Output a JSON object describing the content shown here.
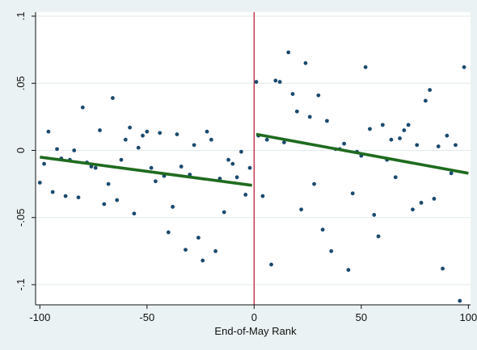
{
  "chart_data": {
    "type": "scatter",
    "title": "",
    "xlabel": "End-of-May Rank",
    "ylabel": "",
    "xlim": [
      -102,
      101
    ],
    "ylim": [
      -0.115,
      0.103
    ],
    "x_ticks": [
      -100,
      -50,
      0,
      50,
      100
    ],
    "x_tick_labels": [
      "-100",
      "-50",
      "0",
      "50",
      "100"
    ],
    "y_ticks": [
      -0.1,
      -0.05,
      0,
      0.05,
      0.1
    ],
    "y_tick_labels": [
      "-.1",
      "-.05",
      "0",
      ".05",
      ".1"
    ],
    "grid": "horizontal",
    "cutoff_x": 0,
    "colors": {
      "background": "#eaf2f3",
      "plot_background": "#ffffff",
      "points": "#1a4a6e",
      "fit_line": "#1f6b1f",
      "cutoff_line": "#c0304a"
    },
    "points": [
      [
        -100,
        -0.024
      ],
      [
        -98,
        -0.01
      ],
      [
        -96,
        0.014
      ],
      [
        -94,
        -0.031
      ],
      [
        -92,
        0.001
      ],
      [
        -90,
        -0.006
      ],
      [
        -88,
        -0.034
      ],
      [
        -86,
        -0.007
      ],
      [
        -84,
        0.0
      ],
      [
        -82,
        -0.035
      ],
      [
        -80,
        0.032
      ],
      [
        -78,
        -0.009
      ],
      [
        -76,
        -0.012
      ],
      [
        -74,
        -0.013
      ],
      [
        -72,
        0.015
      ],
      [
        -70,
        -0.04
      ],
      [
        -68,
        -0.025
      ],
      [
        -66,
        0.039
      ],
      [
        -64,
        -0.037
      ],
      [
        -62,
        -0.007
      ],
      [
        -60,
        0.008
      ],
      [
        -58,
        0.017
      ],
      [
        -56,
        -0.047
      ],
      [
        -54,
        0.002
      ],
      [
        -52,
        0.011
      ],
      [
        -50,
        0.014
      ],
      [
        -48,
        -0.013
      ],
      [
        -46,
        -0.023
      ],
      [
        -44,
        0.013
      ],
      [
        -42,
        -0.019
      ],
      [
        -40,
        -0.061
      ],
      [
        -38,
        -0.042
      ],
      [
        -36,
        0.012
      ],
      [
        -34,
        -0.012
      ],
      [
        -32,
        -0.074
      ],
      [
        -30,
        -0.018
      ],
      [
        -28,
        0.004
      ],
      [
        -26,
        -0.065
      ],
      [
        -24,
        -0.082
      ],
      [
        -22,
        0.014
      ],
      [
        -20,
        0.008
      ],
      [
        -18,
        -0.075
      ],
      [
        -16,
        -0.021
      ],
      [
        -14,
        -0.046
      ],
      [
        -12,
        -0.007
      ],
      [
        -10,
        -0.01
      ],
      [
        -8,
        -0.02
      ],
      [
        -6,
        -0.001
      ],
      [
        -4,
        -0.033
      ],
      [
        -2,
        -0.013
      ],
      [
        1,
        0.051
      ],
      [
        2,
        0.011
      ],
      [
        4,
        -0.034
      ],
      [
        6,
        0.008
      ],
      [
        8,
        -0.085
      ],
      [
        10,
        0.052
      ],
      [
        12,
        0.051
      ],
      [
        14,
        0.006
      ],
      [
        16,
        0.073
      ],
      [
        18,
        0.042
      ],
      [
        20,
        0.029
      ],
      [
        22,
        -0.044
      ],
      [
        24,
        0.065
      ],
      [
        26,
        0.025
      ],
      [
        28,
        -0.025
      ],
      [
        30,
        0.041
      ],
      [
        32,
        -0.059
      ],
      [
        34,
        0.022
      ],
      [
        36,
        -0.075
      ],
      [
        38,
        0.001
      ],
      [
        40,
        0.001
      ],
      [
        42,
        0.005
      ],
      [
        44,
        -0.089
      ],
      [
        46,
        -0.032
      ],
      [
        48,
        -0.001
      ],
      [
        50,
        -0.004
      ],
      [
        52,
        0.062
      ],
      [
        54,
        0.016
      ],
      [
        56,
        -0.048
      ],
      [
        58,
        -0.064
      ],
      [
        60,
        0.019
      ],
      [
        62,
        -0.007
      ],
      [
        64,
        0.008
      ],
      [
        66,
        -0.02
      ],
      [
        68,
        0.009
      ],
      [
        70,
        0.015
      ],
      [
        72,
        0.019
      ],
      [
        74,
        -0.044
      ],
      [
        76,
        0.004
      ],
      [
        78,
        -0.039
      ],
      [
        80,
        0.037
      ],
      [
        82,
        0.045
      ],
      [
        84,
        -0.036
      ],
      [
        86,
        0.003
      ],
      [
        88,
        -0.088
      ],
      [
        90,
        0.011
      ],
      [
        92,
        -0.017
      ],
      [
        94,
        0.004
      ],
      [
        96,
        -0.112
      ],
      [
        98,
        0.062
      ]
    ],
    "fit_lines": [
      {
        "x": [
          -100,
          -1
        ],
        "y": [
          -0.005,
          -0.026
        ]
      },
      {
        "x": [
          1,
          100
        ],
        "y": [
          0.012,
          -0.017
        ]
      }
    ]
  }
}
